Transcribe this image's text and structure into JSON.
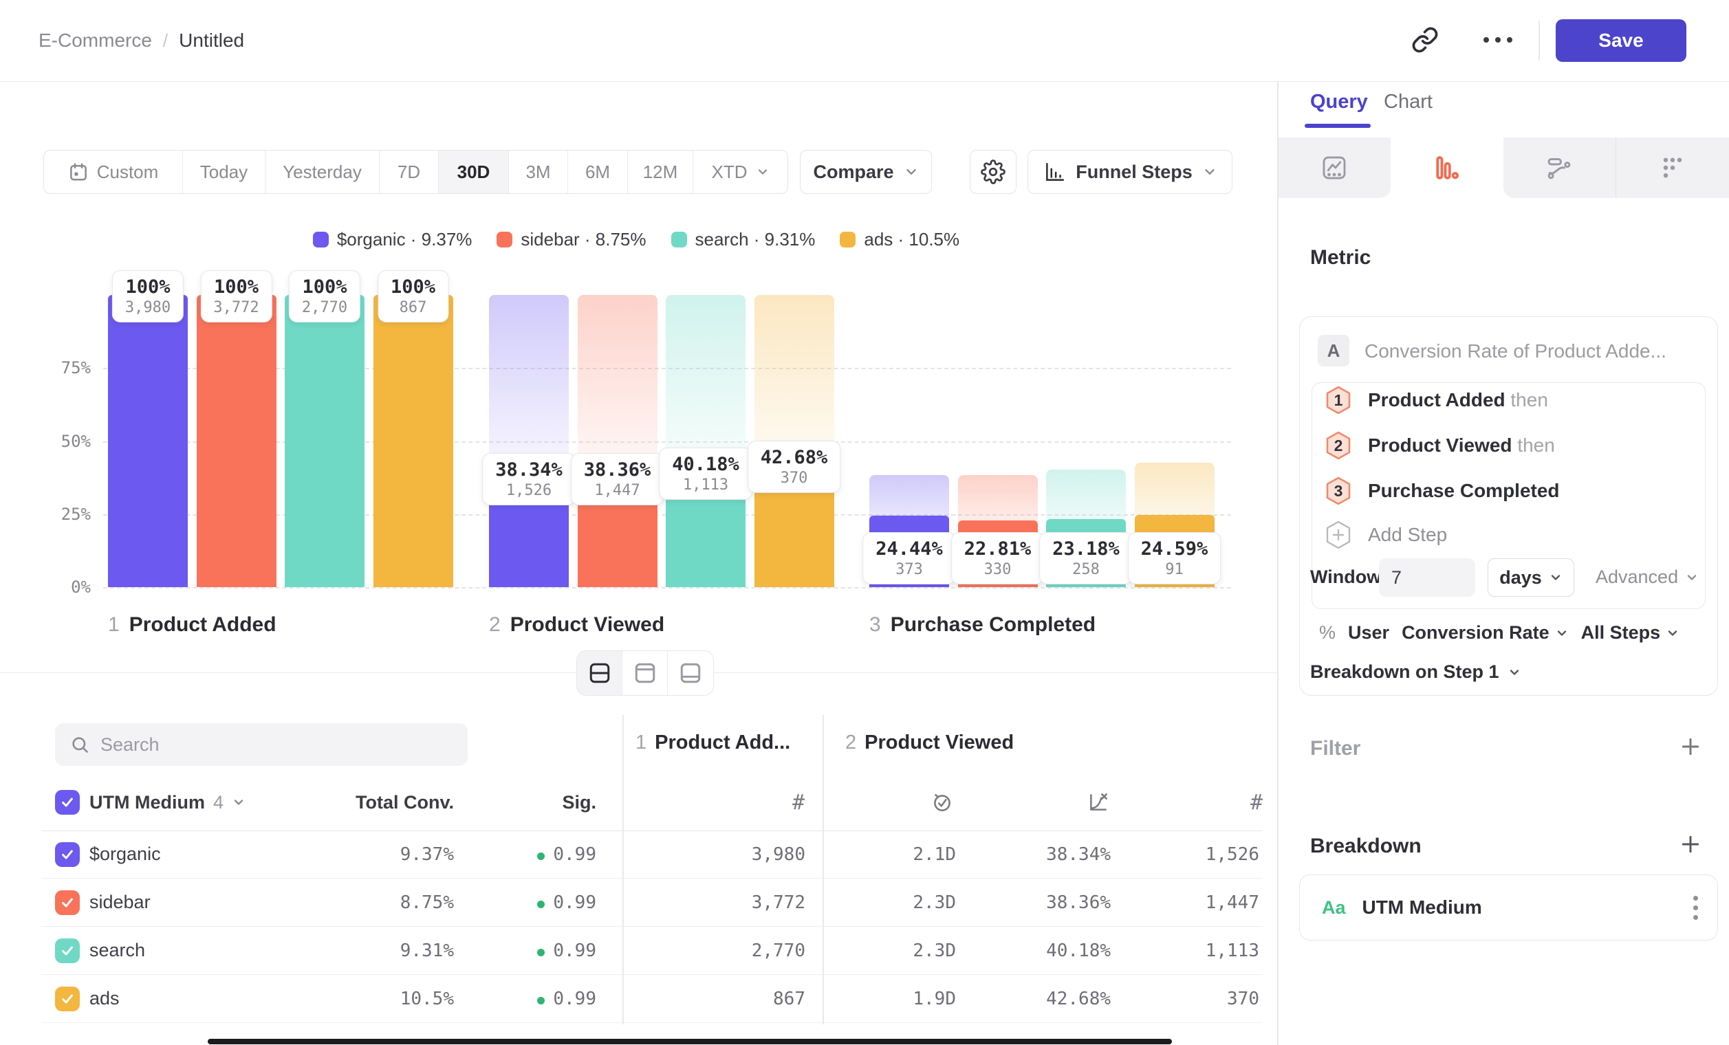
{
  "header": {
    "breadcrumb": {
      "folder": "E-Commerce",
      "separator": "/",
      "name": "Untitled"
    },
    "save_label": "Save"
  },
  "toolbar": {
    "ranges": [
      "Custom",
      "Today",
      "Yesterday",
      "7D",
      "30D",
      "3M",
      "6M",
      "12M",
      "XTD"
    ],
    "active_range": "30D",
    "compare_label": "Compare",
    "chart_type_label": "Funnel Steps"
  },
  "legend": [
    {
      "label": "$organic · 9.37%",
      "color": "#6c59f0"
    },
    {
      "label": "sidebar · 8.75%",
      "color": "#f8735a"
    },
    {
      "label": "search · 9.31%",
      "color": "#6fd9c6"
    },
    {
      "label": "ads · 10.5%",
      "color": "#f3b63f"
    }
  ],
  "chart_data": {
    "type": "bar",
    "subtype": "funnel-steps",
    "title": "",
    "ylabel": "",
    "ylim": [
      0,
      100
    ],
    "yticks": [
      {
        "pct": 0,
        "label": "0%"
      },
      {
        "pct": 25,
        "label": "25%"
      },
      {
        "pct": 50,
        "label": "50%"
      },
      {
        "pct": 75,
        "label": "75%"
      }
    ],
    "grid": true,
    "legend_position": "top",
    "series": [
      {
        "name": "$organic",
        "color": "#6c59f0",
        "overall_conversion": "9.37%"
      },
      {
        "name": "sidebar",
        "color": "#f8735a",
        "overall_conversion": "8.75%"
      },
      {
        "name": "search",
        "color": "#6fd9c6",
        "overall_conversion": "9.31%"
      },
      {
        "name": "ads",
        "color": "#f3b63f",
        "overall_conversion": "10.5%"
      }
    ],
    "steps": [
      {
        "index": "1",
        "name": "Product Added",
        "values": [
          {
            "pct": 100,
            "pct_label": "100%",
            "count": "3,980"
          },
          {
            "pct": 100,
            "pct_label": "100%",
            "count": "3,772"
          },
          {
            "pct": 100,
            "pct_label": "100%",
            "count": "2,770"
          },
          {
            "pct": 100,
            "pct_label": "100%",
            "count": "867"
          }
        ]
      },
      {
        "index": "2",
        "name": "Product Viewed",
        "values": [
          {
            "pct": 38.34,
            "pct_label": "38.34%",
            "count": "1,526"
          },
          {
            "pct": 38.36,
            "pct_label": "38.36%",
            "count": "1,447"
          },
          {
            "pct": 40.18,
            "pct_label": "40.18%",
            "count": "1,113"
          },
          {
            "pct": 42.68,
            "pct_label": "42.68%",
            "count": "370"
          }
        ]
      },
      {
        "index": "3",
        "name": "Purchase Completed",
        "values": [
          {
            "pct": 24.44,
            "pct_label": "24.44%",
            "count": "373"
          },
          {
            "pct": 22.81,
            "pct_label": "22.81%",
            "count": "330"
          },
          {
            "pct": 23.18,
            "pct_label": "23.18%",
            "count": "258"
          },
          {
            "pct": 24.59,
            "pct_label": "24.59%",
            "count": "91"
          }
        ]
      }
    ]
  },
  "view_toggle": {
    "options": [
      "split-horizontal",
      "panel-top",
      "panel-bottom"
    ],
    "active": "split-horizontal"
  },
  "table": {
    "search_placeholder": "Search",
    "breakdown_col": {
      "label": "UTM Medium",
      "count": "4"
    },
    "total_conv_label": "Total Conv.",
    "sig_label": "Sig.",
    "step_columns": [
      {
        "index": "1",
        "label": "Product Add..."
      },
      {
        "index": "2",
        "label": "Product Viewed"
      }
    ],
    "rows": [
      {
        "name": "$organic",
        "color": "#6c59f0",
        "total_conv": "9.37%",
        "sig": "0.99",
        "step1_count": "3,980",
        "avg_time": "2.1D",
        "conv": "38.34%",
        "count": "1,526"
      },
      {
        "name": "sidebar",
        "color": "#f8735a",
        "total_conv": "8.75%",
        "sig": "0.99",
        "step1_count": "3,772",
        "avg_time": "2.3D",
        "conv": "38.36%",
        "count": "1,447"
      },
      {
        "name": "search",
        "color": "#6fd9c6",
        "total_conv": "9.31%",
        "sig": "0.99",
        "step1_count": "2,770",
        "avg_time": "2.3D",
        "conv": "40.18%",
        "count": "1,113"
      },
      {
        "name": "ads",
        "color": "#f3b63f",
        "total_conv": "10.5%",
        "sig": "0.99",
        "step1_count": "867",
        "avg_time": "1.9D",
        "conv": "42.68%",
        "count": "370"
      }
    ]
  },
  "panel": {
    "tabs": {
      "query": "Query",
      "chart": "Chart",
      "active": "Query"
    },
    "metric_heading": "Metric",
    "metric": {
      "badge": "A",
      "title": "Conversion Rate of Product Adde...",
      "steps": [
        {
          "n": "1",
          "label": "Product Added",
          "suffix": "then"
        },
        {
          "n": "2",
          "label": "Product Viewed",
          "suffix": "then"
        },
        {
          "n": "3",
          "label": "Purchase Completed",
          "suffix": ""
        }
      ],
      "add_step_label": "Add Step",
      "window_label": "Window",
      "window_value": "7",
      "window_unit": "days",
      "advanced_label": "Advanced",
      "measure": {
        "pct": "%",
        "entity": "User",
        "metric": "Conversion Rate",
        "steps_scope": "All Steps"
      },
      "breakdown_on": "Breakdown on Step 1"
    },
    "filter_heading": "Filter",
    "breakdown_heading": "Breakdown",
    "breakdown_item": {
      "type_badge": "Aa",
      "label": "UTM Medium"
    }
  },
  "colors": {
    "accent": "#4b43ce",
    "save_button": "#4c45cc",
    "funnel_tab_icon": "#f4694d",
    "sig_dot": "#2eb572",
    "breakdown_type": "#3ec283",
    "hex_stroke": "#ee8b6c",
    "hex_fill": "#fbe0d6"
  }
}
